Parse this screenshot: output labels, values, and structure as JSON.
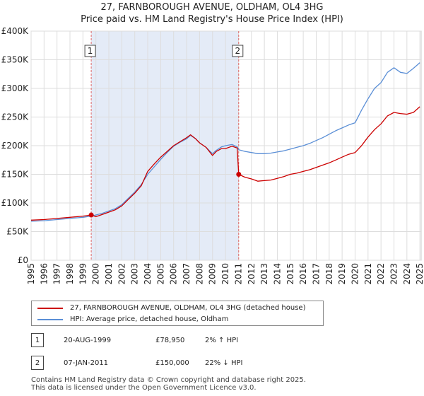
{
  "chart_data": {
    "type": "line",
    "title": "27, FARNBOROUGH AVENUE, OLDHAM, OL4 3HG",
    "subtitle": "Price paid vs. HM Land Registry's House Price Index (HPI)",
    "x_range": [
      1995,
      2025.1
    ],
    "ylim": [
      0,
      400000
    ],
    "y_ticks": [
      0,
      50000,
      100000,
      150000,
      200000,
      250000,
      300000,
      350000,
      400000
    ],
    "y_tick_labels": [
      "£0",
      "£50K",
      "£100K",
      "£150K",
      "£200K",
      "£250K",
      "£300K",
      "£350K",
      "£400K"
    ],
    "x_ticks": [
      1995,
      1996,
      1997,
      1998,
      1999,
      2000,
      2001,
      2002,
      2003,
      2004,
      2005,
      2006,
      2007,
      2008,
      2009,
      2010,
      2011,
      2012,
      2013,
      2014,
      2015,
      2016,
      2017,
      2018,
      2019,
      2020,
      2021,
      2022,
      2023,
      2024,
      2025
    ],
    "x_tick_labels": [
      "1995",
      "1996",
      "1997",
      "1998",
      "1999",
      "2000",
      "2001",
      "2002",
      "2003",
      "2004",
      "2005",
      "2006",
      "2007",
      "2008",
      "2009",
      "2010",
      "2011",
      "2012",
      "2013",
      "2014",
      "2015",
      "2016",
      "2017",
      "2018",
      "2019",
      "2020",
      "2021",
      "2022",
      "2023",
      "2024",
      "2025"
    ],
    "grid": true,
    "series": [
      {
        "name": "27, FARNBOROUGH AVENUE, OLDHAM, OL4 3HG (detached house)",
        "color": "#cc0000",
        "x": [
          1995.0,
          1996.0,
          1997.0,
          1998.0,
          1999.0,
          1999.64,
          2000.0,
          2000.5,
          2001.0,
          2001.5,
          2002.0,
          2002.5,
          2003.0,
          2003.5,
          2004.0,
          2004.5,
          2005.0,
          2005.5,
          2006.0,
          2006.5,
          2007.0,
          2007.3,
          2007.7,
          2008.0,
          2008.5,
          2009.0,
          2009.3,
          2009.7,
          2010.0,
          2010.5,
          2010.9,
          2011.02,
          2011.5,
          2012.0,
          2012.5,
          2013.0,
          2013.5,
          2014.0,
          2014.5,
          2015.0,
          2015.5,
          2016.0,
          2016.5,
          2017.0,
          2017.5,
          2018.0,
          2018.5,
          2019.0,
          2019.5,
          2020.0,
          2020.5,
          2021.0,
          2021.5,
          2022.0,
          2022.5,
          2023.0,
          2023.5,
          2024.0,
          2024.5,
          2025.0
        ],
        "y": [
          70000,
          71000,
          73000,
          75000,
          77000,
          78950,
          76000,
          80000,
          84000,
          88000,
          95000,
          106000,
          117000,
          130000,
          155000,
          168000,
          180000,
          190000,
          200000,
          207000,
          214000,
          219000,
          212000,
          205000,
          197000,
          183000,
          190000,
          195000,
          195000,
          199000,
          196000,
          150000,
          145000,
          142000,
          138000,
          139000,
          140000,
          143000,
          146000,
          150000,
          152000,
          155000,
          158000,
          162000,
          166000,
          170000,
          175000,
          180000,
          185000,
          188000,
          200000,
          215000,
          228000,
          238000,
          252000,
          258000,
          256000,
          255000,
          258000,
          268000
        ]
      },
      {
        "name": "HPI: Average price, detached house, Oldham",
        "color": "#5b8fd6",
        "x": [
          1995.0,
          1996.0,
          1997.0,
          1998.0,
          1999.0,
          1999.64,
          2000.0,
          2000.5,
          2001.0,
          2001.5,
          2002.0,
          2002.5,
          2003.0,
          2003.5,
          2004.0,
          2004.5,
          2005.0,
          2005.5,
          2006.0,
          2006.5,
          2007.0,
          2007.3,
          2007.7,
          2008.0,
          2008.5,
          2009.0,
          2009.3,
          2009.7,
          2010.0,
          2010.5,
          2010.9,
          2011.02,
          2011.5,
          2012.0,
          2012.5,
          2013.0,
          2013.5,
          2014.0,
          2014.5,
          2015.0,
          2015.5,
          2016.0,
          2016.5,
          2017.0,
          2017.5,
          2018.0,
          2018.5,
          2019.0,
          2019.5,
          2020.0,
          2020.5,
          2021.0,
          2021.5,
          2022.0,
          2022.5,
          2023.0,
          2023.5,
          2024.0,
          2024.5,
          2025.0
        ],
        "y": [
          68000,
          69000,
          71000,
          73000,
          75000,
          77000,
          79000,
          82000,
          86000,
          90000,
          97000,
          108000,
          119000,
          132000,
          150000,
          163000,
          176000,
          188000,
          199000,
          206000,
          212000,
          218000,
          212000,
          205000,
          197000,
          186000,
          192000,
          198000,
          200000,
          202000,
          198000,
          193000,
          190000,
          188000,
          186000,
          186000,
          187000,
          189000,
          191000,
          194000,
          197000,
          200000,
          204000,
          209000,
          214000,
          220000,
          226000,
          231000,
          236000,
          240000,
          262000,
          282000,
          300000,
          310000,
          328000,
          336000,
          328000,
          326000,
          335000,
          345000
        ]
      }
    ],
    "sales": [
      {
        "number": "1",
        "x": 1999.64,
        "y": 78950
      },
      {
        "number": "2",
        "x": 2011.02,
        "y": 150000
      }
    ]
  },
  "legend": {
    "property_label": "27, FARNBOROUGH AVENUE, OLDHAM, OL4 3HG (detached house)",
    "hpi_label": "HPI: Average price, detached house, Oldham",
    "property_color": "#cc0000",
    "hpi_color": "#5b8fd6"
  },
  "sales_table": [
    {
      "number": "1",
      "date": "20-AUG-1999",
      "price": "£78,950",
      "hpi": "2% ↑ HPI"
    },
    {
      "number": "2",
      "date": "07-JAN-2011",
      "price": "£150,000",
      "hpi": "22% ↓ HPI"
    }
  ],
  "footer": {
    "line1": "Contains HM Land Registry data © Crown copyright and database right 2025.",
    "line2": "This data is licensed under the Open Government Licence v3.0."
  }
}
